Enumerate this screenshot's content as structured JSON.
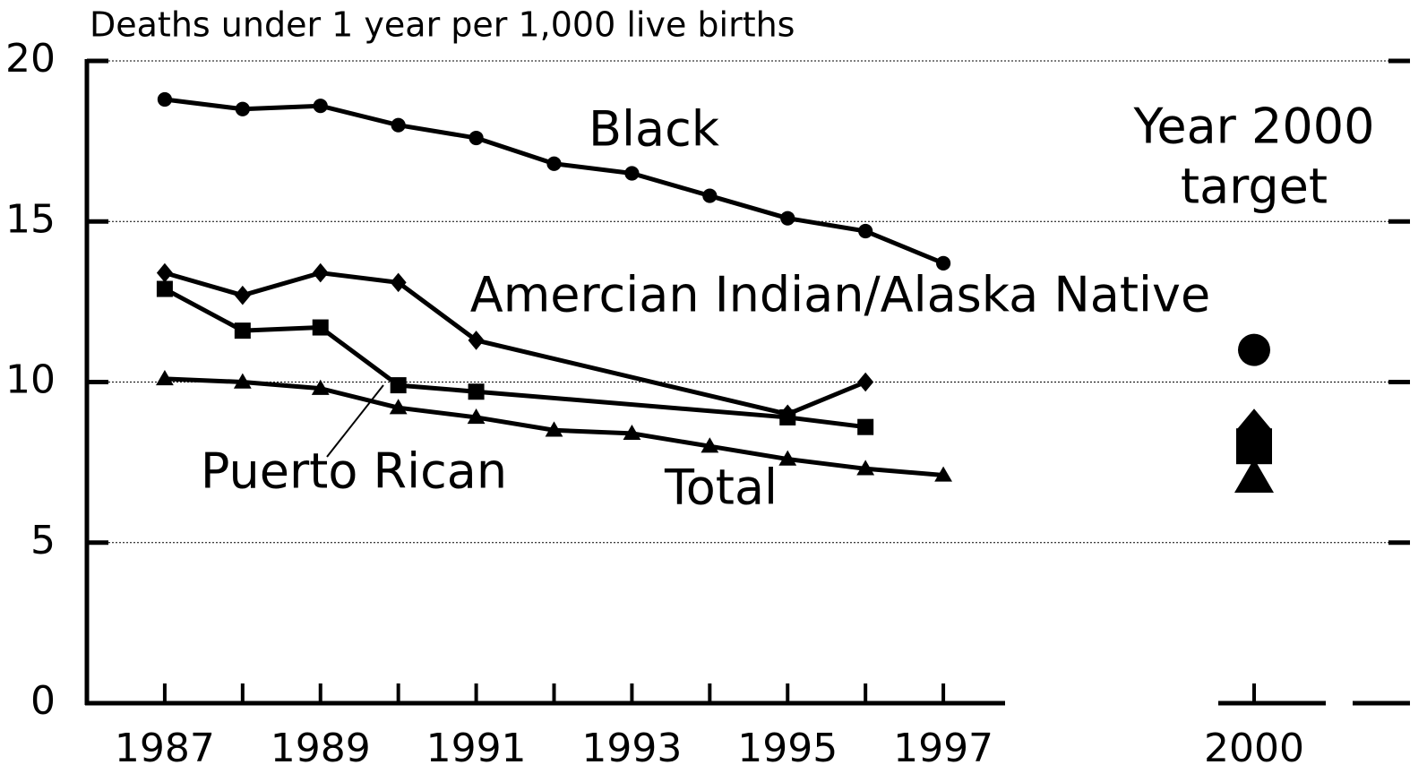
{
  "chart_data": {
    "type": "line",
    "y_label": "Deaths under 1 year per 1,000 live births",
    "ylim": [
      0,
      20
    ],
    "yticks": [
      0,
      5,
      10,
      15,
      20
    ],
    "grid": true,
    "xlim": [
      1986,
      1998
    ],
    "xticks": [
      1987,
      1989,
      1991,
      1993,
      1995,
      1997
    ],
    "minor_xticks": [
      1988,
      1990,
      1992,
      1994,
      1996
    ],
    "target_x": 2000,
    "target_title": [
      "Year 2000",
      "target"
    ],
    "series": [
      {
        "name": "Black",
        "color": "#000000",
        "marker": "circle",
        "x": [
          1987,
          1988,
          1989,
          1990,
          1991,
          1992,
          1993,
          1994,
          1995,
          1996,
          1997
        ],
        "values": [
          18.8,
          18.5,
          18.6,
          18.0,
          17.6,
          16.8,
          16.5,
          15.8,
          15.1,
          14.7,
          13.7
        ],
        "target": 11.0
      },
      {
        "name": "Amercian Indian/Alaska Native",
        "color": "#000000",
        "marker": "diamond",
        "x": [
          1987,
          1988,
          1989,
          1990,
          1991,
          1995,
          1996
        ],
        "values": [
          13.4,
          12.7,
          13.4,
          13.1,
          11.3,
          9.0,
          10.0
        ],
        "target": 8.5
      },
      {
        "name": "Puerto Rican",
        "color": "#000000",
        "marker": "square",
        "x": [
          1987,
          1988,
          1989,
          1990,
          1991,
          1995,
          1996
        ],
        "values": [
          12.9,
          11.6,
          11.7,
          9.9,
          9.7,
          8.9,
          8.6
        ],
        "target": 8.0
      },
      {
        "name": "Total",
        "color": "#000000",
        "marker": "triangle",
        "x": [
          1987,
          1988,
          1989,
          1990,
          1991,
          1992,
          1993,
          1994,
          1995,
          1996,
          1997
        ],
        "values": [
          10.1,
          10.0,
          9.8,
          9.2,
          8.9,
          8.5,
          8.4,
          8.0,
          7.6,
          7.3,
          7.1
        ],
        "target": 7.0
      }
    ]
  }
}
